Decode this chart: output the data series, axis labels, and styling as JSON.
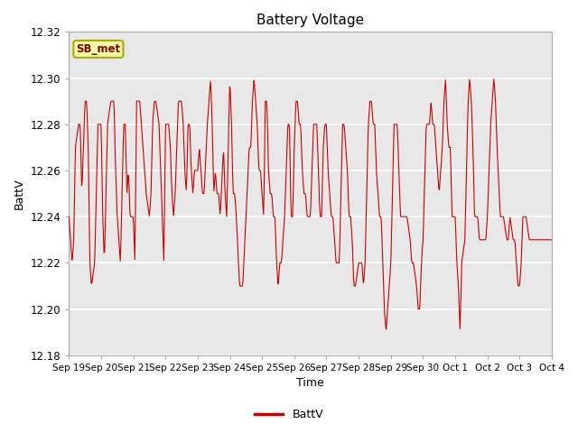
{
  "title": "Battery Voltage",
  "xlabel": "Time",
  "ylabel": "BattV",
  "legend_label": "BattV",
  "legend_box_label": "SB_met",
  "ylim": [
    12.18,
    12.32
  ],
  "plot_bg_color": "#dcdcdc",
  "inner_bg_color": "#ebebeb",
  "line_color": "#cc0000",
  "x_tick_labels": [
    "Sep 19",
    "Sep 20",
    "Sep 21",
    "Sep 22",
    "Sep 23",
    "Sep 24",
    "Sep 25",
    "Sep 26",
    "Sep 27",
    "Sep 28",
    "Sep 29",
    "Sep 30",
    "Oct 1",
    "Oct 2",
    "Oct 3",
    "Oct 4"
  ],
  "seed": 123,
  "n_points": 800
}
